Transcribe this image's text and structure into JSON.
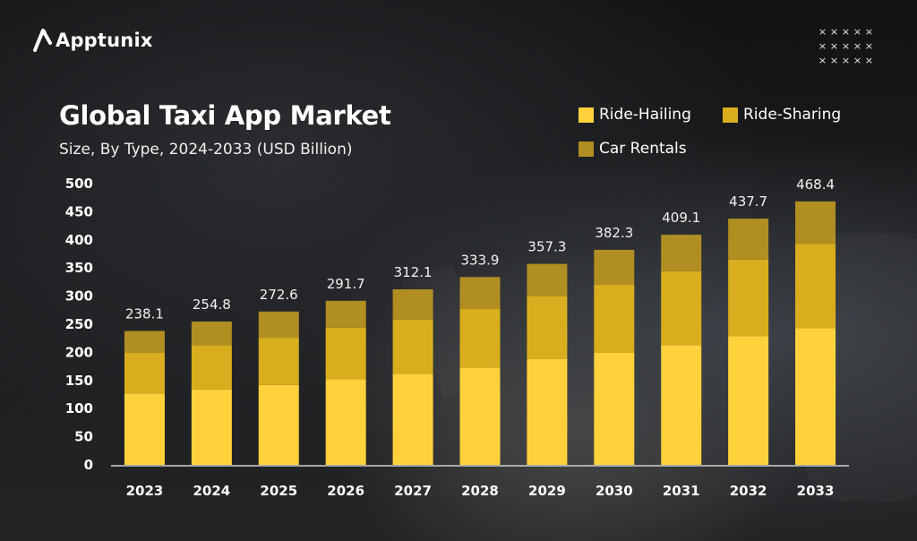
{
  "brand": {
    "name": "Apptunix"
  },
  "decoration": {
    "marker": "×"
  },
  "chart_data": {
    "type": "bar",
    "stacked": true,
    "title": "Global Taxi App Market",
    "subtitle": "Size, By Type, 2024-2033 (USD Billion)",
    "categories": [
      "2023",
      "2024",
      "2025",
      "2026",
      "2027",
      "2028",
      "2029",
      "2030",
      "2031",
      "2032",
      "2033"
    ],
    "series": [
      {
        "name": "Ride-Hailing",
        "color": "#FFD23C",
        "values": [
          127,
          134,
          142,
          152,
          162,
          173,
          188,
          199,
          213,
          229,
          243
        ]
      },
      {
        "name": "Ride-Sharing",
        "color": "#D9AE1E",
        "values": [
          72,
          79,
          84,
          92,
          96,
          104,
          112,
          121,
          131,
          136,
          150
        ]
      },
      {
        "name": "Car Rentals",
        "color": "#B08E22",
        "values": [
          39.1,
          41.8,
          46.6,
          47.7,
          54.1,
          56.9,
          57.3,
          62.3,
          65.1,
          72.7,
          75.4
        ]
      }
    ],
    "totals": [
      "238.1",
      "254.8",
      "272.6",
      "291.7",
      "312.1",
      "333.9",
      "357.3",
      "382.3",
      "409.1",
      "437.7",
      "468.4"
    ],
    "y_ticks": [
      0,
      50,
      100,
      150,
      200,
      250,
      300,
      350,
      400,
      450,
      500
    ],
    "ylim": [
      0,
      500
    ],
    "xlabel": "",
    "ylabel": "",
    "legend_position": "top-right",
    "grid": false
  }
}
